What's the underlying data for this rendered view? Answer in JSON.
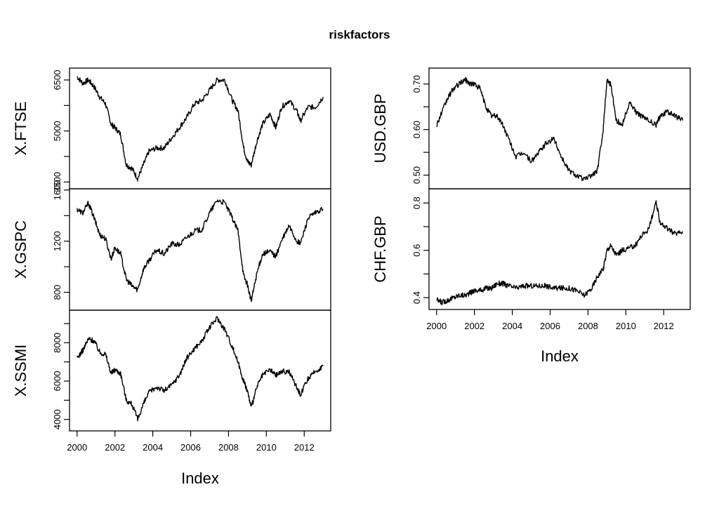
{
  "title": "riskfactors",
  "x_axis_label": "Index",
  "chart_data": [
    {
      "type": "line",
      "ylabel": "X.FTSE",
      "yticks": [
        3500,
        5000,
        6500
      ],
      "ylim": [
        3300,
        6850
      ],
      "x_ticks": [
        "2000",
        "2002",
        "2004",
        "2006",
        "2008",
        "2010",
        "2012"
      ],
      "x": [
        2000.0,
        2000.3,
        2000.6,
        2000.9,
        2001.2,
        2001.5,
        2001.8,
        2002.0,
        2002.3,
        2002.6,
        2002.9,
        2003.2,
        2003.5,
        2003.8,
        2004.2,
        2004.6,
        2005.0,
        2005.4,
        2005.8,
        2006.2,
        2006.6,
        2007.0,
        2007.4,
        2007.8,
        2008.2,
        2008.5,
        2008.8,
        2009.0,
        2009.2,
        2009.5,
        2009.8,
        2010.2,
        2010.5,
        2010.8,
        2011.2,
        2011.6,
        2011.8,
        2012.2,
        2012.6,
        2013.0
      ],
      "y": [
        6600,
        6400,
        6500,
        6300,
        6000,
        5800,
        5200,
        5100,
        4900,
        4000,
        3900,
        3600,
        4000,
        4400,
        4500,
        4500,
        4800,
        5100,
        5400,
        5800,
        5900,
        6200,
        6500,
        6500,
        5900,
        5600,
        4500,
        4100,
        4000,
        4700,
        5200,
        5500,
        5100,
        5700,
        5900,
        5600,
        5300,
        5700,
        5700,
        6000
      ]
    },
    {
      "type": "line",
      "ylabel": "X.GSPC",
      "yticks": [
        800,
        1200,
        1600
      ],
      "ylim": [
        660,
        1610
      ],
      "x_ticks": [
        "2000",
        "2002",
        "2004",
        "2006",
        "2008",
        "2010",
        "2012"
      ],
      "x": [
        2000.0,
        2000.3,
        2000.6,
        2000.9,
        2001.2,
        2001.5,
        2001.8,
        2002.0,
        2002.3,
        2002.6,
        2002.9,
        2003.2,
        2003.5,
        2003.8,
        2004.2,
        2004.6,
        2005.0,
        2005.4,
        2005.8,
        2006.2,
        2006.6,
        2007.0,
        2007.4,
        2007.8,
        2008.2,
        2008.5,
        2008.8,
        2009.0,
        2009.2,
        2009.5,
        2009.8,
        2010.2,
        2010.5,
        2010.8,
        2011.2,
        2011.6,
        2011.8,
        2012.2,
        2012.6,
        2013.0
      ],
      "y": [
        1450,
        1420,
        1500,
        1380,
        1250,
        1220,
        1060,
        1150,
        1100,
        900,
        850,
        820,
        980,
        1050,
        1130,
        1100,
        1180,
        1170,
        1230,
        1280,
        1290,
        1420,
        1520,
        1500,
        1380,
        1280,
        930,
        860,
        730,
        950,
        1100,
        1120,
        1080,
        1200,
        1320,
        1200,
        1180,
        1380,
        1420,
        1450
      ]
    },
    {
      "type": "line",
      "ylabel": "X.SSMI",
      "yticks": [
        4000,
        6000,
        8000
      ],
      "ylim": [
        3400,
        9700
      ],
      "x_ticks": [
        "2000",
        "2002",
        "2004",
        "2006",
        "2008",
        "2010",
        "2012"
      ],
      "x": [
        2000.0,
        2000.3,
        2000.6,
        2000.9,
        2001.2,
        2001.5,
        2001.8,
        2002.0,
        2002.3,
        2002.6,
        2002.9,
        2003.2,
        2003.5,
        2003.8,
        2004.2,
        2004.6,
        2005.0,
        2005.4,
        2005.8,
        2006.2,
        2006.6,
        2007.0,
        2007.4,
        2007.8,
        2008.2,
        2008.5,
        2008.8,
        2009.0,
        2009.2,
        2009.5,
        2009.8,
        2010.2,
        2010.5,
        2010.8,
        2011.2,
        2011.6,
        2011.8,
        2012.2,
        2012.6,
        2013.0
      ],
      "y": [
        7200,
        7600,
        8200,
        8100,
        7500,
        7400,
        6400,
        6600,
        6400,
        5000,
        4800,
        4000,
        4800,
        5400,
        5700,
        5500,
        5800,
        6300,
        7200,
        7700,
        8100,
        8800,
        9300,
        8700,
        7800,
        7000,
        6000,
        5500,
        4600,
        5700,
        6300,
        6600,
        6300,
        6500,
        6500,
        5700,
        5300,
        6100,
        6500,
        6800
      ]
    },
    {
      "type": "line",
      "ylabel": "USD.GBP",
      "yticks": [
        "0.50",
        "0.60",
        "0.70"
      ],
      "ylim": [
        0.47,
        0.735
      ],
      "x_ticks": [
        "2000",
        "2002",
        "2004",
        "2006",
        "2008",
        "2010",
        "2012"
      ],
      "x": [
        2000.0,
        2000.3,
        2000.6,
        2000.9,
        2001.2,
        2001.5,
        2001.8,
        2002.0,
        2002.3,
        2002.6,
        2002.9,
        2003.2,
        2003.5,
        2003.8,
        2004.2,
        2004.6,
        2005.0,
        2005.4,
        2005.8,
        2006.2,
        2006.6,
        2007.0,
        2007.4,
        2007.8,
        2008.2,
        2008.5,
        2008.8,
        2009.0,
        2009.2,
        2009.5,
        2009.8,
        2010.2,
        2010.5,
        2010.8,
        2011.2,
        2011.6,
        2011.8,
        2012.2,
        2012.6,
        2013.0
      ],
      "y": [
        0.61,
        0.64,
        0.67,
        0.69,
        0.7,
        0.71,
        0.7,
        0.7,
        0.69,
        0.65,
        0.63,
        0.63,
        0.61,
        0.58,
        0.54,
        0.55,
        0.53,
        0.55,
        0.57,
        0.58,
        0.54,
        0.51,
        0.5,
        0.49,
        0.5,
        0.51,
        0.6,
        0.71,
        0.7,
        0.62,
        0.61,
        0.66,
        0.64,
        0.63,
        0.62,
        0.61,
        0.63,
        0.64,
        0.63,
        0.62
      ]
    },
    {
      "type": "line",
      "ylabel": "CHF.GBP",
      "yticks": [
        "0.4",
        "0.6",
        "0.8"
      ],
      "ylim": [
        0.35,
        0.86
      ],
      "x_ticks": [
        "2000",
        "2002",
        "2004",
        "2006",
        "2008",
        "2010",
        "2012"
      ],
      "x": [
        2000.0,
        2000.3,
        2000.6,
        2000.9,
        2001.2,
        2001.5,
        2001.8,
        2002.0,
        2002.3,
        2002.6,
        2002.9,
        2003.2,
        2003.5,
        2003.8,
        2004.2,
        2004.6,
        2005.0,
        2005.4,
        2005.8,
        2006.2,
        2006.6,
        2007.0,
        2007.4,
        2007.8,
        2008.2,
        2008.5,
        2008.8,
        2009.0,
        2009.2,
        2009.5,
        2009.8,
        2010.2,
        2010.5,
        2010.8,
        2011.2,
        2011.6,
        2011.8,
        2012.2,
        2012.6,
        2013.0
      ],
      "y": [
        0.39,
        0.38,
        0.39,
        0.4,
        0.41,
        0.41,
        0.42,
        0.43,
        0.43,
        0.44,
        0.44,
        0.46,
        0.46,
        0.45,
        0.44,
        0.45,
        0.45,
        0.45,
        0.45,
        0.44,
        0.44,
        0.44,
        0.43,
        0.41,
        0.44,
        0.49,
        0.52,
        0.6,
        0.62,
        0.58,
        0.6,
        0.61,
        0.62,
        0.66,
        0.69,
        0.8,
        0.72,
        0.69,
        0.67,
        0.68
      ]
    }
  ]
}
